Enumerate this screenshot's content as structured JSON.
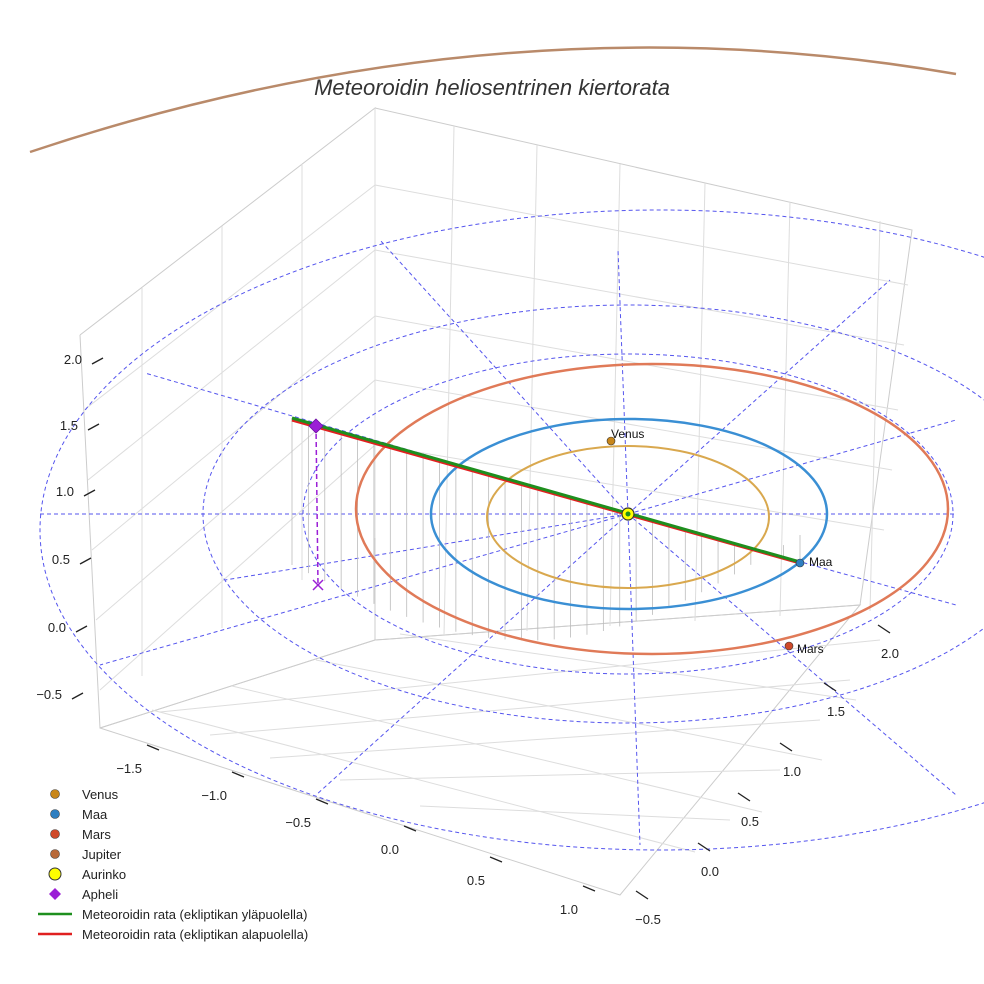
{
  "chart_data": {
    "type": "scatter3d",
    "title": "Meteoroidin heliosentrinen kiertorata",
    "axes": {
      "x": {
        "ticks": [
          -1.5,
          -1.0,
          -0.5,
          0.0,
          0.5,
          1.0
        ],
        "tick_labels": [
          "−1.5",
          "−1.0",
          "−0.5",
          "0.0",
          "0.5",
          "1.0"
        ]
      },
      "y": {
        "ticks": [
          -0.5,
          0.0,
          0.5,
          1.0,
          1.5,
          2.0
        ],
        "tick_labels": [
          "−0.5",
          "0.0",
          "0.5",
          "1.0",
          "1.5",
          "2.0"
        ]
      },
      "z": {
        "ticks": [
          -0.5,
          0.0,
          0.5,
          1.0,
          1.5,
          2.0
        ],
        "tick_labels": [
          "−0.5",
          "0.0",
          "0.5",
          "1.0",
          "1.5",
          "2.0"
        ]
      }
    },
    "grid": true,
    "legend_position": "bottom-left",
    "planets": [
      {
        "name": "Venus",
        "label": "Venus",
        "color": "#c8861a",
        "orbit_color": "#d9a84e",
        "orbit_radius_au": 0.72
      },
      {
        "name": "Maa",
        "label": "Maa",
        "color": "#2f7fc1",
        "orbit_color": "#3a8fd4",
        "orbit_radius_au": 1.0
      },
      {
        "name": "Mars",
        "label": "Mars",
        "color": "#cf4a2a",
        "orbit_color": "#e07a58",
        "orbit_radius_au": 1.52
      },
      {
        "name": "Jupiter",
        "label": "",
        "color": "#b86a3a",
        "orbit_color": "#b98a6a",
        "orbit_radius_au": 5.2
      }
    ],
    "sun": {
      "name": "Aurinko",
      "color": "#ffff00",
      "position": [
        0,
        0,
        0
      ]
    },
    "aphelion": {
      "name": "Apheli",
      "color": "#9b1fd6"
    },
    "meteoroid_orbit": [
      {
        "name": "Meteoroidin rata (ekliptikan yläpuolella)",
        "color": "#1e8f1e"
      },
      {
        "name": "Meteoroidin rata (ekliptikan alapuolella)",
        "color": "#e02020"
      }
    ],
    "reference_circles": {
      "color": "#5555ee",
      "style": "dashed"
    }
  },
  "legend": [
    {
      "label": "Venus",
      "marker": "circle",
      "color": "#c8861a"
    },
    {
      "label": "Maa",
      "marker": "circle",
      "color": "#2f7fc1"
    },
    {
      "label": "Mars",
      "marker": "circle",
      "color": "#cf4a2a"
    },
    {
      "label": "Jupiter",
      "marker": "circle",
      "color": "#b86a3a"
    },
    {
      "label": "Aurinko",
      "marker": "big-circle",
      "color": "#ffff00"
    },
    {
      "label": "Apheli",
      "marker": "diamond",
      "color": "#9b1fd6"
    },
    {
      "label": "Meteoroidin rata (ekliptikan yläpuolella)",
      "marker": "line",
      "color": "#1e8f1e"
    },
    {
      "label": "Meteoroidin rata (ekliptikan alapuolella)",
      "marker": "line",
      "color": "#e02020"
    }
  ]
}
